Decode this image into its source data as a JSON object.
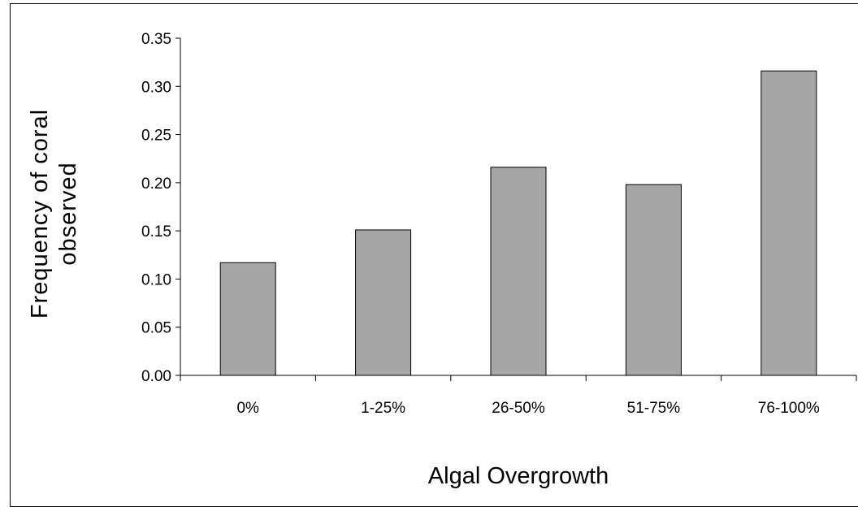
{
  "chart_data": {
    "type": "bar",
    "categories": [
      "0%",
      "1-25%",
      "26-50%",
      "51-75%",
      "76-100%"
    ],
    "values": [
      0.117,
      0.151,
      0.216,
      0.198,
      0.316
    ],
    "xlabel": "Algal Overgrowth",
    "ylabel_lines": [
      "Frequency of coral",
      "observed"
    ],
    "ylim": [
      0,
      0.35
    ],
    "yticks": [
      "0.00",
      "0.05",
      "0.10",
      "0.15",
      "0.20",
      "0.25",
      "0.30",
      "0.35"
    ],
    "grid": false,
    "legend": "none",
    "bar_color": "#a6a6a6",
    "bar_edge_color": "#000000"
  }
}
